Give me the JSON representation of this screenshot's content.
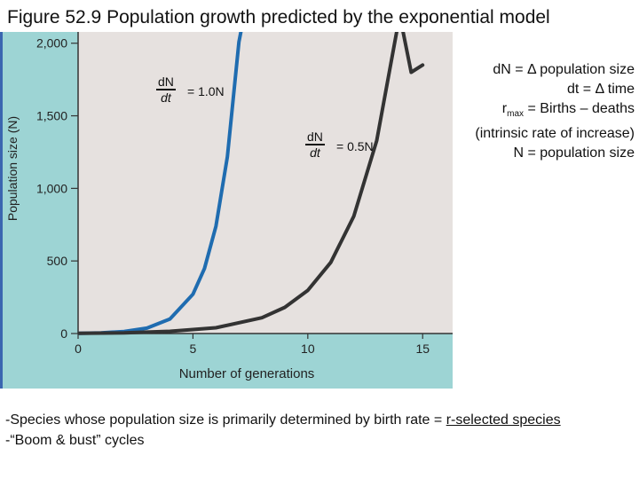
{
  "title": "Figure 52.9 Population growth predicted by the exponential model",
  "chart_data": {
    "type": "line",
    "xlabel": "Number of generations",
    "ylabel": "Population size (N)",
    "xlim": [
      0,
      17
    ],
    "ylim": [
      0,
      2200
    ],
    "xticks": [
      0,
      5,
      10,
      15
    ],
    "yticks": [
      0,
      500,
      1000,
      1500,
      2000
    ],
    "ytick_labels": [
      "0",
      "500",
      "1,000",
      "1,500",
      "2,000"
    ],
    "grid": false,
    "series": [
      {
        "color": "#1f6cb0",
        "x": [
          0,
          1,
          2,
          3,
          4,
          5,
          5.5,
          6,
          6.5,
          7,
          7.3,
          7.6,
          7.8
        ],
        "y": [
          2,
          5,
          14,
          37,
          100,
          271,
          448,
          739,
          1218,
          2008,
          2250,
          2250,
          2250
        ]
      },
      {
        "color": "#333333",
        "x": [
          0,
          2,
          4,
          6,
          8,
          9,
          10,
          11,
          12,
          13,
          14,
          14.5,
          15
        ],
        "y": [
          2,
          5,
          15,
          40,
          109,
          180,
          297,
          490,
          807,
          1330,
          2193,
          1800,
          1850
        ]
      }
    ],
    "annotations": [
      {
        "numerator": "dN",
        "denominator": "dt",
        "rhs": "= 1.0N"
      },
      {
        "numerator": "dN",
        "denominator": "dt",
        "rhs": "= 0.5N"
      }
    ]
  },
  "key": {
    "line1": "dN = Δ population size",
    "line2": "dt = Δ time",
    "line3_r": "r",
    "line3_sub": "max",
    "line3_rest": " = Births – deaths",
    "line4": "(intrinsic rate of increase)",
    "line5": "N = population size"
  },
  "notes": {
    "line1_prefix": "-Species whose population size is primarily determined by birth rate = ",
    "line1_link": "r-selected species",
    "line2": "-“Boom & bust” cycles"
  }
}
